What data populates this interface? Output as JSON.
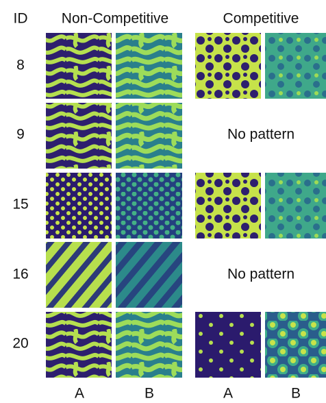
{
  "header": {
    "id": "ID",
    "groups": [
      "Non-Competitive",
      "Competitive"
    ]
  },
  "rows": [
    {
      "id": 8
    },
    {
      "id": 9,
      "note": "No pattern"
    },
    {
      "id": 15
    },
    {
      "id": 16,
      "note": "No pattern"
    },
    {
      "id": 20
    }
  ],
  "columns": [
    "A",
    "B",
    "A",
    "B"
  ]
}
